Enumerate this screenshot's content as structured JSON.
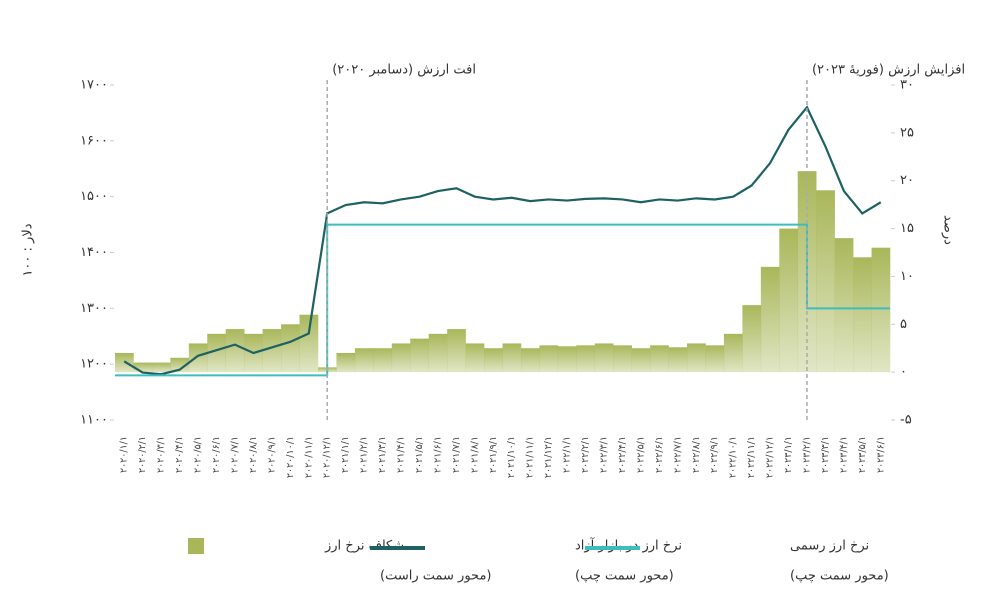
{
  "chart_data": {
    "type": "line",
    "y_label": "۱۰۰ : دلار",
    "y2_label": "درصد",
    "categories": [
      "۲۰۲۰/۱/۱",
      "۲۰۲۰/۲/۱",
      "۲۰۲۰/۳/۱",
      "۲۰۲۰/۴/۱",
      "۲۰۲۰/۵/۱",
      "۲۰۲۰/۶/۱",
      "۲۰۲۰/۷/۱",
      "۲۰۲۰/۸/۱",
      "۲۰۲۰/۹/۱",
      "۲۰۲۰/۱۰/۱",
      "۲۰۲۰/۱۱/۱",
      "۲۰۲۰/۱۲/۱",
      "۲۰۲۱/۱/۱",
      "۲۰۲۱/۲/۱",
      "۲۰۲۱/۳/۱",
      "۲۰۲۱/۴/۱",
      "۲۰۲۱/۵/۱",
      "۲۰۲۱/۶/۱",
      "۲۰۲۱/۷/۱",
      "۲۰۲۱/۸/۱",
      "۲۰۲۱/۹/۱",
      "۲۰۲۱/۱۰/۱",
      "۲۰۲۱/۱۱/۱",
      "۲۰۲۱/۱۲/۱",
      "۲۰۲۲/۱/۱",
      "۲۰۲۲/۲/۱",
      "۲۰۲۲/۳/۱",
      "۲۰۲۲/۴/۱",
      "۲۰۲۲/۵/۱",
      "۲۰۲۲/۶/۱",
      "۲۰۲۲/۷/۱",
      "۲۰۲۲/۸/۱",
      "۲۰۲۲/۹/۱",
      "۲۰۲۲/۱۰/۱",
      "۲۰۲۲/۱۱/۱",
      "۲۰۲۲/۱۲/۱",
      "۲۰۲۳/۱/۱",
      "۲۰۲۳/۲/۱",
      "۲۰۲۳/۳/۱",
      "۲۰۲۳/۴/۱",
      "۲۰۲۳/۵/۱",
      "۲۰۲۳/۶/۱"
    ],
    "series": [
      {
        "name": "شکاف نرخ ارز",
        "legend_note": "(محور سمت راست)",
        "type": "bar",
        "axis": "y2",
        "color": "#a9b75a",
        "values": [
          2,
          1,
          1,
          1.5,
          3,
          4,
          4.5,
          4,
          4.5,
          5,
          6,
          0.5,
          2,
          2.5,
          2.5,
          3,
          3.5,
          4,
          4.5,
          3,
          2.5,
          3,
          2.5,
          2.8,
          2.7,
          2.8,
          3,
          2.8,
          2.5,
          2.8,
          2.6,
          3,
          2.8,
          4,
          7,
          11,
          15,
          21,
          19,
          14,
          12,
          13
        ]
      },
      {
        "name": "نرخ ارز در بازار آزاد",
        "legend_note": "(محور سمت چپ)",
        "type": "line",
        "color": "#1d6163",
        "values": [
          1205,
          1185,
          1182,
          1190,
          1215,
          1225,
          1235,
          1220,
          1230,
          1240,
          1255,
          1470,
          1485,
          1490,
          1488,
          1495,
          1500,
          1510,
          1515,
          1500,
          1495,
          1498,
          1492,
          1495,
          1493,
          1496,
          1497,
          1495,
          1490,
          1495,
          1493,
          1497,
          1495,
          1500,
          1520,
          1560,
          1620,
          1660,
          1590,
          1510,
          1470,
          1490
        ]
      },
      {
        "name": "نرخ ارز رسمی",
        "legend_note": "(محور سمت چپ)",
        "type": "step",
        "color": "#3dbdbb",
        "values": [
          1180,
          1180,
          1180,
          1180,
          1180,
          1180,
          1180,
          1180,
          1180,
          1180,
          1180,
          1450,
          1450,
          1450,
          1450,
          1450,
          1450,
          1450,
          1450,
          1450,
          1450,
          1450,
          1450,
          1450,
          1450,
          1450,
          1450,
          1450,
          1450,
          1450,
          1450,
          1450,
          1450,
          1450,
          1450,
          1450,
          1450,
          1300,
          1300,
          1300,
          1300,
          1300
        ]
      }
    ],
    "annotations": [
      {
        "text": "افت ارزش (دسامبر ۲۰۲۰)",
        "category": "۲۰۲۰/۱۲/۱"
      },
      {
        "text": "افزایش ارزش (فوریهٔ ۲۰۲۳)",
        "category": "۲۰۲۳/۲/۱"
      }
    ],
    "ylim": [
      1100,
      1700
    ],
    "yticks": [
      {
        "value": 1100,
        "label": "۱۱۰۰"
      },
      {
        "value": 1200,
        "label": "۱۲۰۰"
      },
      {
        "value": 1300,
        "label": "۱۳۰۰"
      },
      {
        "value": 1400,
        "label": "۱۴۰۰"
      },
      {
        "value": 1500,
        "label": "۱۵۰۰"
      },
      {
        "value": 1600,
        "label": "۱۶۰۰"
      },
      {
        "value": 1700,
        "label": "۱۷۰۰"
      }
    ],
    "y2lim": [
      -5,
      30
    ],
    "y2ticks": [
      {
        "value": -5,
        "label": "-۵"
      },
      {
        "value": 0,
        "label": "۰"
      },
      {
        "value": 5,
        "label": "۵"
      },
      {
        "value": 10,
        "label": "۱۰"
      },
      {
        "value": 15,
        "label": "۱۵"
      },
      {
        "value": 20,
        "label": "۲۰"
      },
      {
        "value": 25,
        "label": "۲۵"
      },
      {
        "value": 30,
        "label": "۳۰"
      }
    ]
  }
}
